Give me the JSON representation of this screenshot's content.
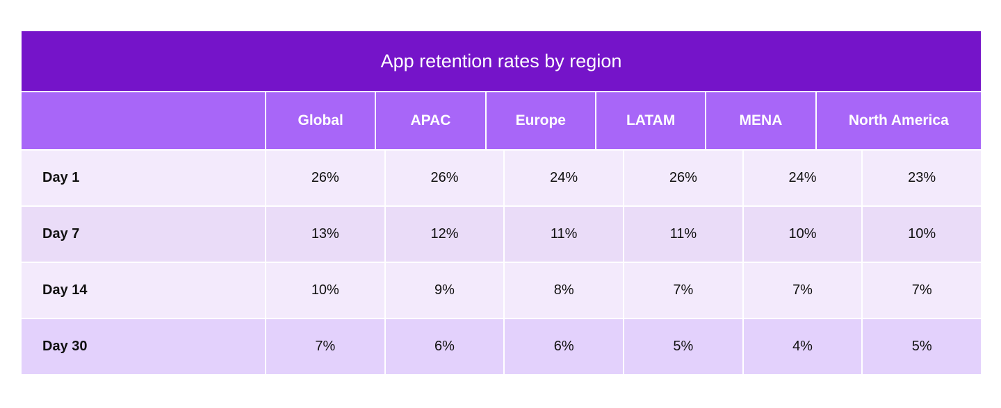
{
  "chart_data": {
    "type": "table",
    "title": "App retention rates by region",
    "columns": [
      "",
      "Global",
      "APAC",
      "Europe",
      "LATAM",
      "MENA",
      "North America"
    ],
    "rows": [
      {
        "label": "Day 1",
        "values": [
          "26%",
          "26%",
          "24%",
          "26%",
          "24%",
          "23%"
        ]
      },
      {
        "label": "Day 7",
        "values": [
          "13%",
          "12%",
          "11%",
          "11%",
          "10%",
          "10%"
        ]
      },
      {
        "label": "Day 14",
        "values": [
          "10%",
          "9%",
          "8%",
          "7%",
          "7%",
          "7%"
        ]
      },
      {
        "label": "Day 30",
        "values": [
          "7%",
          "6%",
          "6%",
          "5%",
          "4%",
          "5%"
        ]
      }
    ]
  },
  "colors": {
    "title_bg": "#7514c9",
    "header_bg": "#a866f8",
    "row_light": "#f3eafc",
    "row_mid": "#eadcf8",
    "row_last": "#e3d1fc"
  }
}
